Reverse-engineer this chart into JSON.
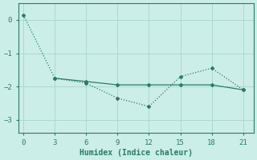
{
  "xlabel": "Humidex (Indice chaleur)",
  "background_color": "#cceee8",
  "grid_color": "#aad8d0",
  "line_color": "#2a7a6a",
  "x_ticks": [
    0,
    3,
    6,
    9,
    12,
    15,
    18,
    21
  ],
  "xlim": [
    -0.5,
    22
  ],
  "ylim": [
    -3.4,
    0.5
  ],
  "y_ticks": [
    0,
    -1,
    -2,
    -3
  ],
  "series1_x": [
    0,
    3,
    6,
    9,
    12,
    15,
    18,
    21
  ],
  "series1_y": [
    0.15,
    -1.75,
    -1.9,
    -2.35,
    -2.6,
    -1.7,
    -1.45,
    -2.1
  ],
  "series2_x": [
    3,
    6,
    9,
    12,
    15,
    18,
    21
  ],
  "series2_y": [
    -1.75,
    -1.85,
    -1.95,
    -1.95,
    -1.95,
    -1.95,
    -2.1
  ]
}
